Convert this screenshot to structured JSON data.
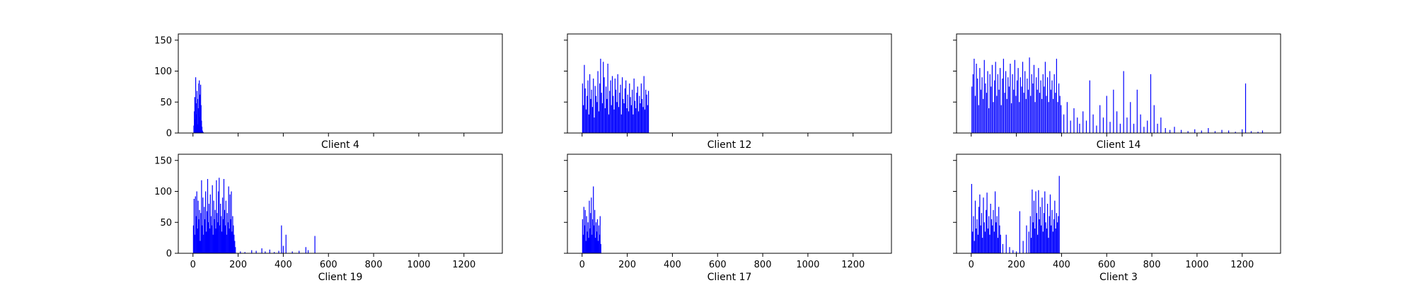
{
  "chart_data": [
    {
      "type": "bar",
      "title": "Client 4",
      "xlim": [
        -65,
        1370
      ],
      "ylim": [
        0,
        160
      ],
      "xticks": [
        0,
        200,
        400,
        600,
        800,
        1000,
        1200
      ],
      "yticks": [
        0,
        50,
        100,
        150
      ],
      "show_xtick_labels": false,
      "show_ytick_labels": true,
      "color": "#0000ff",
      "x": [
        4,
        6,
        8,
        10,
        12,
        14,
        16,
        18,
        20,
        22,
        24,
        26,
        28,
        30,
        32,
        34,
        36,
        38,
        40,
        42,
        44,
        46
      ],
      "values": [
        12,
        35,
        58,
        22,
        90,
        48,
        30,
        68,
        55,
        14,
        40,
        80,
        85,
        62,
        26,
        78,
        45,
        20,
        10,
        4,
        2,
        1
      ]
    },
    {
      "type": "bar",
      "title": "Client 12",
      "xlim": [
        -65,
        1370
      ],
      "ylim": [
        0,
        160
      ],
      "xticks": [
        0,
        200,
        400,
        600,
        800,
        1000,
        1200
      ],
      "yticks": [
        0,
        50,
        100,
        150
      ],
      "show_xtick_labels": false,
      "show_ytick_labels": false,
      "color": "#0000ff",
      "x": [
        2,
        6,
        10,
        14,
        18,
        22,
        26,
        30,
        34,
        38,
        42,
        46,
        50,
        54,
        58,
        62,
        66,
        70,
        74,
        78,
        82,
        86,
        90,
        94,
        98,
        102,
        106,
        110,
        114,
        118,
        122,
        126,
        130,
        134,
        138,
        142,
        146,
        150,
        154,
        158,
        162,
        166,
        170,
        174,
        178,
        182,
        186,
        190,
        194,
        198,
        202,
        206,
        210,
        214,
        218,
        222,
        226,
        230,
        234,
        238,
        242,
        246,
        250,
        254,
        258,
        262,
        266,
        270,
        274,
        278,
        282,
        286,
        290,
        294
      ],
      "values": [
        80,
        45,
        110,
        72,
        38,
        60,
        85,
        30,
        95,
        55,
        70,
        42,
        88,
        25,
        76,
        60,
        50,
        100,
        35,
        80,
        120,
        65,
        48,
        115,
        90,
        40,
        75,
        55,
        112,
        30,
        68,
        85,
        45,
        92,
        60,
        38,
        88,
        70,
        50,
        95,
        42,
        65,
        78,
        30,
        90,
        55,
        48,
        72,
        85,
        40,
        62,
        35,
        80,
        58,
        45,
        70,
        30,
        88,
        52,
        40,
        65,
        75,
        35,
        60,
        48,
        80,
        55,
        42,
        92,
        38,
        70,
        62,
        45,
        68
      ]
    },
    {
      "type": "bar",
      "title": "Client 14",
      "xlim": [
        -65,
        1370
      ],
      "ylim": [
        0,
        160
      ],
      "xticks": [
        0,
        200,
        400,
        600,
        800,
        1000,
        1200
      ],
      "yticks": [
        0,
        50,
        100,
        150
      ],
      "show_xtick_labels": false,
      "show_ytick_labels": false,
      "color": "#0000ff",
      "x": [
        3,
        8,
        13,
        18,
        23,
        28,
        33,
        38,
        43,
        48,
        53,
        58,
        63,
        68,
        73,
        78,
        83,
        88,
        93,
        98,
        103,
        108,
        113,
        118,
        123,
        128,
        133,
        138,
        143,
        148,
        153,
        158,
        163,
        168,
        173,
        178,
        183,
        188,
        193,
        198,
        203,
        208,
        213,
        218,
        223,
        228,
        233,
        238,
        243,
        248,
        253,
        258,
        263,
        268,
        273,
        278,
        283,
        288,
        293,
        298,
        303,
        308,
        313,
        318,
        323,
        328,
        333,
        338,
        343,
        348,
        353,
        358,
        363,
        368,
        373,
        378,
        383,
        388,
        393,
        398,
        410,
        425,
        440,
        455,
        470,
        480,
        495,
        510,
        525,
        540,
        555,
        570,
        585,
        600,
        615,
        630,
        645,
        660,
        675,
        690,
        705,
        720,
        735,
        750,
        765,
        780,
        795,
        810,
        825,
        840,
        860,
        880,
        900,
        930,
        960,
        990,
        1020,
        1050,
        1080,
        1110,
        1140,
        1170,
        1200,
        1215,
        1240,
        1270,
        1290
      ],
      "values": [
        75,
        95,
        120,
        60,
        112,
        88,
        45,
        105,
        70,
        90,
        55,
        118,
        80,
        65,
        100,
        40,
        95,
        75,
        110,
        50,
        85,
        115,
        60,
        95,
        70,
        105,
        45,
        88,
        120,
        65,
        100,
        55,
        90,
        75,
        112,
        48,
        95,
        70,
        118,
        60,
        85,
        105,
        50,
        90,
        75,
        115,
        65,
        100,
        55,
        88,
        70,
        122,
        60,
        95,
        80,
        110,
        50,
        90,
        70,
        105,
        65,
        85,
        55,
        95,
        75,
        115,
        60,
        90,
        50,
        100,
        70,
        85,
        55,
        95,
        65,
        120,
        50,
        80,
        60,
        45,
        30,
        50,
        20,
        40,
        25,
        15,
        35,
        20,
        85,
        30,
        12,
        45,
        25,
        60,
        18,
        70,
        35,
        15,
        100,
        25,
        50,
        15,
        70,
        30,
        10,
        20,
        95,
        45,
        15,
        25,
        8,
        5,
        10,
        5,
        3,
        6,
        4,
        8,
        3,
        5,
        4,
        2,
        6,
        80,
        3,
        2,
        4
      ]
    },
    {
      "type": "bar",
      "title": "Client 19",
      "xlim": [
        -65,
        1370
      ],
      "ylim": [
        0,
        160
      ],
      "xticks": [
        0,
        200,
        400,
        600,
        800,
        1000,
        1200
      ],
      "yticks": [
        0,
        50,
        100,
        150
      ],
      "show_xtick_labels": true,
      "show_ytick_labels": true,
      "color": "#0000ff",
      "x": [
        2,
        5,
        8,
        11,
        14,
        17,
        20,
        23,
        26,
        29,
        32,
        35,
        38,
        41,
        44,
        47,
        50,
        53,
        56,
        59,
        62,
        65,
        68,
        71,
        74,
        77,
        80,
        83,
        86,
        89,
        92,
        95,
        98,
        101,
        104,
        107,
        110,
        113,
        116,
        119,
        122,
        125,
        128,
        131,
        134,
        137,
        140,
        143,
        146,
        149,
        152,
        155,
        158,
        161,
        164,
        167,
        170,
        173,
        176,
        179,
        182,
        185,
        188,
        210,
        230,
        260,
        280,
        305,
        320,
        340,
        360,
        380,
        392,
        400,
        412,
        440,
        470,
        500,
        510,
        540
      ],
      "values": [
        45,
        88,
        30,
        92,
        60,
        100,
        40,
        85,
        55,
        70,
        20,
        65,
        118,
        45,
        90,
        30,
        75,
        55,
        100,
        35,
        68,
        120,
        50,
        80,
        40,
        95,
        60,
        45,
        110,
        30,
        85,
        55,
        70,
        40,
        118,
        65,
        50,
        100,
        122,
        45,
        80,
        60,
        35,
        90,
        55,
        120,
        70,
        45,
        85,
        30,
        65,
        50,
        108,
        40,
        95,
        55,
        100,
        35,
        60,
        45,
        30,
        20,
        10,
        3,
        2,
        5,
        4,
        8,
        3,
        6,
        2,
        4,
        45,
        12,
        30,
        3,
        4,
        10,
        5,
        28
      ]
    },
    {
      "type": "bar",
      "title": "Client 17",
      "xlim": [
        -65,
        1370
      ],
      "ylim": [
        0,
        160
      ],
      "xticks": [
        0,
        200,
        400,
        600,
        800,
        1000,
        1200
      ],
      "yticks": [
        0,
        50,
        100,
        150
      ],
      "show_xtick_labels": true,
      "show_ytick_labels": false,
      "color": "#0000ff",
      "x": [
        2,
        5,
        8,
        11,
        14,
        17,
        20,
        23,
        26,
        29,
        32,
        35,
        38,
        41,
        44,
        47,
        50,
        53,
        56,
        59,
        62,
        65,
        68,
        71,
        74,
        77,
        80,
        83
      ],
      "values": [
        55,
        30,
        75,
        45,
        70,
        20,
        60,
        35,
        50,
        25,
        85,
        40,
        65,
        90,
        30,
        55,
        108,
        45,
        70,
        25,
        50,
        35,
        55,
        20,
        45,
        30,
        60,
        15
      ]
    },
    {
      "type": "bar",
      "title": "Client 3",
      "xlim": [
        -65,
        1370
      ],
      "ylim": [
        0,
        160
      ],
      "xticks": [
        0,
        200,
        400,
        600,
        800,
        1000,
        1200
      ],
      "yticks": [
        0,
        50,
        100,
        150
      ],
      "show_xtick_labels": true,
      "show_ytick_labels": false,
      "color": "#0000ff",
      "x": [
        2,
        6,
        10,
        14,
        18,
        22,
        26,
        30,
        34,
        38,
        42,
        46,
        50,
        54,
        58,
        62,
        66,
        70,
        74,
        78,
        82,
        86,
        90,
        94,
        98,
        102,
        106,
        110,
        114,
        118,
        122,
        126,
        130,
        140,
        155,
        170,
        185,
        200,
        215,
        230,
        245,
        255,
        262,
        266,
        270,
        274,
        278,
        282,
        286,
        290,
        294,
        298,
        302,
        306,
        310,
        314,
        318,
        322,
        326,
        330,
        334,
        338,
        342,
        346,
        350,
        354,
        358,
        362,
        366,
        370,
        374,
        378,
        382,
        386,
        390
      ],
      "values": [
        112,
        35,
        60,
        20,
        85,
        40,
        55,
        30,
        75,
        95,
        45,
        65,
        25,
        90,
        50,
        35,
        70,
        98,
        40,
        60,
        30,
        80,
        55,
        45,
        70,
        35,
        100,
        50,
        60,
        25,
        75,
        45,
        30,
        15,
        30,
        10,
        5,
        3,
        68,
        20,
        45,
        35,
        60,
        25,
        103,
        50,
        85,
        40,
        100,
        65,
        30,
        102,
        55,
        75,
        45,
        90,
        35,
        65,
        100,
        50,
        40,
        80,
        25,
        60,
        95,
        45,
        70,
        35,
        55,
        85,
        40,
        65,
        50,
        60,
        125
      ]
    }
  ]
}
